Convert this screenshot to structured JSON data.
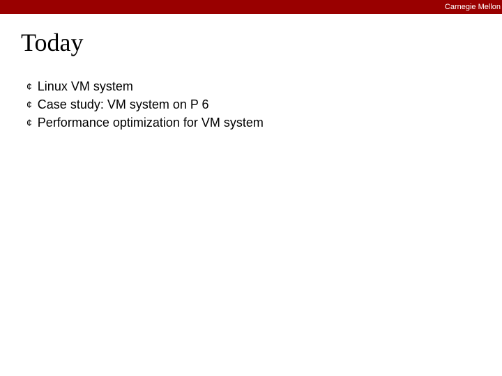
{
  "header": {
    "org": "Carnegie Mellon",
    "bar_color": "#990000",
    "text_color": "#ffffff"
  },
  "slide": {
    "title": "Today",
    "title_fontsize": 36,
    "title_color": "#000000",
    "bullets": [
      {
        "text": "Linux VM system"
      },
      {
        "text": "Case study: VM system on P 6"
      },
      {
        "text": "Performance optimization for VM system"
      }
    ],
    "bullet_marker": "¢",
    "bullet_fontsize": 18,
    "background_color": "#ffffff"
  }
}
